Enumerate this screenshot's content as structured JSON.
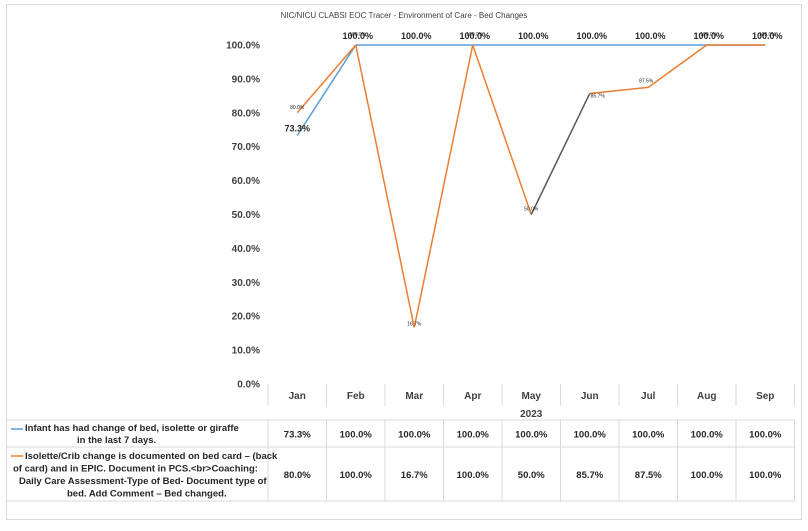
{
  "chart_data": {
    "type": "line",
    "title": "NIC/NICU CLABSI EOC Tracer - Environment of Care - Bed Changes",
    "xlabel": "2023",
    "ylabel": "",
    "categories": [
      "Jan",
      "Feb",
      "Mar",
      "Apr",
      "May",
      "Jun",
      "Jul",
      "Aug",
      "Sep"
    ],
    "ylim": [
      0,
      100
    ],
    "yticks": [
      "0.0%",
      "10.0%",
      "20.0%",
      "30.0%",
      "40.0%",
      "50.0%",
      "60.0%",
      "70.0%",
      "80.0%",
      "90.0%",
      "100.0%"
    ],
    "grid": false,
    "legend": "table-below",
    "series": [
      {
        "name": "Infant has had change of bed, isolette or giraffe in the last 7 days.",
        "color": "#5b9bd5",
        "values": [
          73.3,
          100.0,
          100.0,
          100.0,
          100.0,
          100.0,
          100.0,
          100.0,
          100.0
        ],
        "labels": [
          "73.3%",
          "100.0%",
          "100.0%",
          "100.0%",
          "100.0%",
          "100.0%",
          "100.0%",
          "100.0%",
          "100.0%"
        ]
      },
      {
        "name": "Isolette/Crib change is documented on bed card – (back of card) and in EPIC. Document in PCS.<br>Coaching: Daily Care Assessment-Type of Bed- Document type of bed. Add Comment – Bed changed.",
        "color": "#ed7d31",
        "values": [
          80.0,
          100.0,
          16.7,
          100.0,
          50.0,
          85.7,
          87.5,
          100.0,
          100.0
        ],
        "labels": [
          "80.0%",
          "100.0%",
          "16.7%",
          "100.0%",
          "50.0%",
          "85.7%",
          "87.5%",
          "100.0%",
          "100.0%"
        ]
      }
    ],
    "table": {
      "row1": [
        "73.3%",
        "100.0%",
        "100.0%",
        "100.0%",
        "100.0%",
        "100.0%",
        "100.0%",
        "100.0%",
        "100.0%"
      ],
      "row2": [
        "80.0%",
        "100.0%",
        "16.7%",
        "100.0%",
        "50.0%",
        "85.7%",
        "87.5%",
        "100.0%",
        "100.0%"
      ]
    },
    "segment_colors": {
      "may_jun_orange_line": "#595959"
    }
  }
}
